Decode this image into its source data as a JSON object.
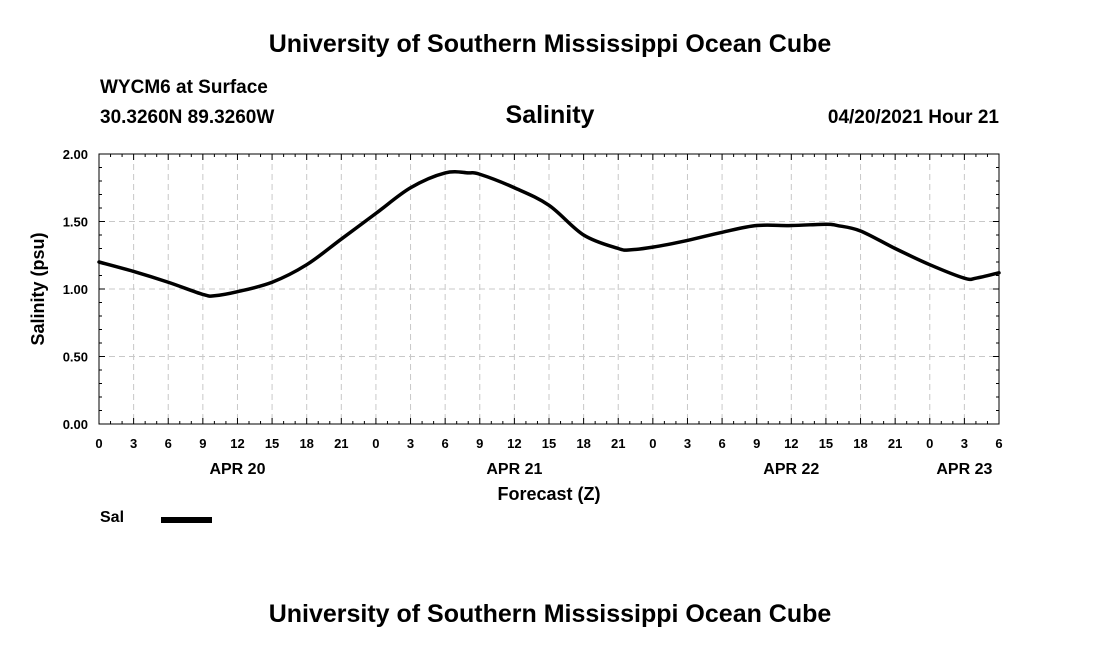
{
  "header": {
    "title_top": "University of Southern Mississippi Ocean Cube",
    "station": "WYCM6 at Surface",
    "coords": "30.3260N  89.3260W",
    "variable": "Salinity",
    "datetime": "04/20/2021 Hour 21",
    "title_bottom": "University of Southern Mississippi Ocean Cube"
  },
  "legend": {
    "label": "Sal"
  },
  "colors": {
    "line": "#000000",
    "grid": "#c8c8c8",
    "axis": "#000000"
  },
  "chart_data": {
    "type": "line",
    "title": "Salinity",
    "xlabel": "Forecast (Z)",
    "ylabel": "Salinity (psu)",
    "ylim": [
      0,
      2
    ],
    "xlim": [
      0,
      78
    ],
    "grid": true,
    "legend_position": "bottom-left",
    "y_ticks": [
      0,
      0.5,
      1,
      1.5,
      2
    ],
    "y_tick_labels": [
      "0.00",
      "0.50",
      "1.00",
      "1.50",
      "2.00"
    ],
    "x_ticks": [
      0,
      3,
      6,
      9,
      12,
      15,
      18,
      21,
      24,
      27,
      30,
      33,
      36,
      39,
      42,
      45,
      48,
      51,
      54,
      57,
      60,
      63,
      66,
      69,
      72,
      75,
      78
    ],
    "x_tick_labels": [
      "0",
      "3",
      "6",
      "9",
      "12",
      "15",
      "18",
      "21",
      "0",
      "3",
      "6",
      "9",
      "12",
      "15",
      "18",
      "21",
      "0",
      "3",
      "6",
      "9",
      "12",
      "15",
      "18",
      "21",
      "0",
      "3",
      "6"
    ],
    "date_labels": [
      {
        "label": "APR 20",
        "hour": 12
      },
      {
        "label": "APR 21",
        "hour": 36
      },
      {
        "label": "APR 22",
        "hour": 60
      },
      {
        "label": "APR 23",
        "hour": 75
      }
    ],
    "series": [
      {
        "name": "Sal",
        "x": [
          0,
          3,
          6,
          9,
          10,
          12,
          15,
          18,
          21,
          24,
          27,
          30,
          32,
          33,
          36,
          39,
          42,
          45,
          46,
          48,
          51,
          54,
          57,
          60,
          63,
          64,
          66,
          69,
          72,
          75,
          76,
          78
        ],
        "values": [
          1.2,
          1.13,
          1.05,
          0.96,
          0.95,
          0.98,
          1.05,
          1.18,
          1.37,
          1.56,
          1.75,
          1.86,
          1.86,
          1.85,
          1.75,
          1.62,
          1.4,
          1.3,
          1.29,
          1.31,
          1.36,
          1.42,
          1.47,
          1.47,
          1.48,
          1.47,
          1.43,
          1.3,
          1.18,
          1.08,
          1.08,
          1.12
        ]
      }
    ]
  }
}
